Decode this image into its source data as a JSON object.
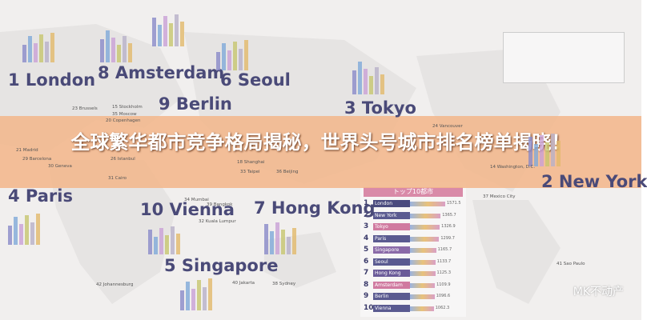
{
  "map": {
    "cities": [
      "1 London",
      "8 Amsterdam",
      "9 Berlin",
      "6 Seoul",
      "3 Tokyo",
      "2 New York",
      "4 Paris",
      "10 Vienna",
      "7 Hong Kong",
      "5 Singapore"
    ],
    "small_cities": [
      "23 Brussels",
      "15 Stockholm",
      "35 Moscow",
      "20 Copenhagen",
      "21 Madrid",
      "29 Barcelona",
      "30 Geneva",
      "26 Istanbul",
      "31 Cairo",
      "24 Vancouver",
      "18 Shanghai",
      "33 Taipei",
      "36 Beijing",
      "34 Mumbai",
      "39 Bangkok",
      "32 Kuala Lumpur",
      "40 Jakarta",
      "38 Sydney",
      "42 Johannesburg",
      "14 Washington, D.C.",
      "37 Mexico City",
      "41 Sao Paulo"
    ]
  },
  "top10": {
    "header": "トップ10都市",
    "rows": [
      {
        "name": "London",
        "score": 1571.5
      },
      {
        "name": "New York",
        "score": 1365.7
      },
      {
        "name": "Tokyo",
        "score": 1326.9
      },
      {
        "name": "Paris",
        "score": 1299.7
      },
      {
        "name": "Singapore",
        "score": 1165.7
      },
      {
        "name": "Seoul",
        "score": 1133.7
      },
      {
        "name": "Hong Kong",
        "score": 1125.3
      },
      {
        "name": "Amsterdam",
        "score": 1109.9
      },
      {
        "name": "Berlin",
        "score": 1096.6
      },
      {
        "name": "Vienna",
        "score": 1062.3
      }
    ]
  },
  "banner": {
    "title": "全球繁华都市竞争格局揭秘，世界头号城市排名榜单揭晓！"
  },
  "watermark": "MK不动产"
}
